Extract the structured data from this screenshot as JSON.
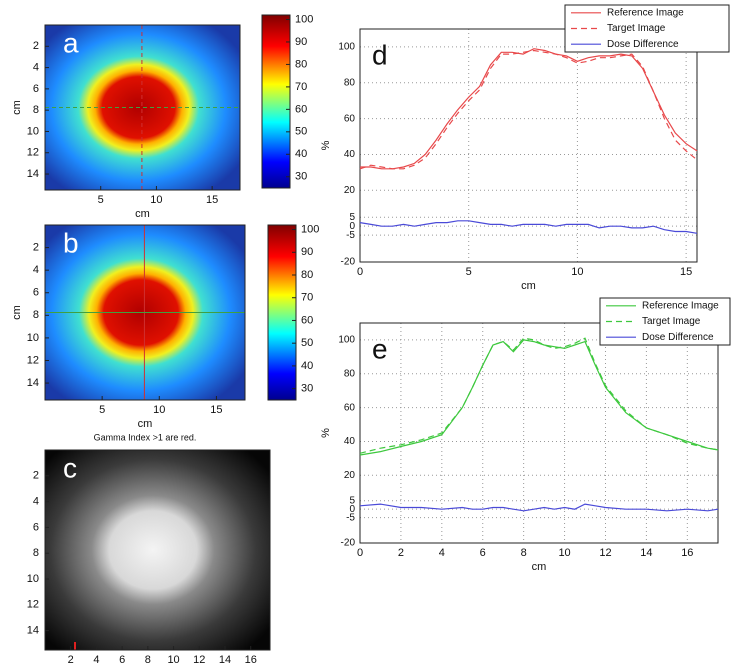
{
  "chart_data": [
    {
      "type": "heatmap",
      "panel": "a",
      "xlabel": "cm",
      "ylabel": "cm",
      "colormap": "jet",
      "xlim": [
        0,
        17.5
      ],
      "xticks": [
        5,
        10,
        15
      ],
      "ylim": [
        15.5,
        0
      ],
      "yticks": [
        2,
        4,
        6,
        8,
        10,
        12,
        14
      ],
      "colorbar_lim": [
        25,
        102
      ],
      "colorbar_ticks": [
        30,
        40,
        50,
        60,
        70,
        80,
        90,
        100
      ]
    },
    {
      "type": "heatmap",
      "panel": "b",
      "xlabel": "cm",
      "ylabel": "cm",
      "colormap": "jet",
      "note": "Gamma Index >1 are red.",
      "xlim": [
        0,
        17.5
      ],
      "xticks": [
        5,
        10,
        15
      ],
      "ylim": [
        15.5,
        0
      ],
      "yticks": [
        2,
        4,
        6,
        8,
        10,
        12,
        14
      ],
      "colorbar_lim": [
        25,
        102
      ],
      "colorbar_ticks": [
        30,
        40,
        50,
        60,
        70,
        80,
        90,
        100
      ]
    },
    {
      "type": "heatmap",
      "panel": "c",
      "colormap": "gray",
      "xlim": [
        0,
        17.5
      ],
      "xticks": [
        2,
        4,
        6,
        8,
        10,
        12,
        14,
        16
      ],
      "ylim": [
        15.5,
        0
      ],
      "yticks": [
        2,
        4,
        6,
        8,
        10,
        12,
        14
      ]
    },
    {
      "type": "line",
      "panel": "d",
      "xlabel": "cm",
      "ylabel": "%",
      "grid": true,
      "legend": "upper right",
      "xlim": [
        0,
        15.5
      ],
      "xticks": [
        0,
        5,
        10,
        15
      ],
      "ylim": [
        -20,
        110
      ],
      "yticks": [
        -20,
        -5,
        0,
        5,
        20,
        40,
        60,
        80,
        100
      ],
      "x": [
        0,
        0.5,
        1,
        1.5,
        2,
        2.5,
        3,
        3.5,
        4,
        4.5,
        5,
        5.5,
        6,
        6.5,
        7,
        7.5,
        8,
        8.5,
        9,
        9.5,
        10,
        10.5,
        11,
        11.5,
        12,
        12.5,
        13,
        13.5,
        14,
        14.5,
        15,
        15.5
      ],
      "series": [
        {
          "name": "Reference Image",
          "color": "#e8484a",
          "dash": "solid",
          "values": [
            33,
            33,
            32,
            32,
            33,
            35,
            40,
            48,
            57,
            65,
            72,
            78,
            90,
            97,
            97,
            96,
            99,
            98,
            96,
            95,
            92,
            94,
            95,
            95,
            96,
            95,
            88,
            75,
            62,
            52,
            46,
            42
          ]
        },
        {
          "name": "Target Image",
          "color": "#e8484a",
          "dash": "dashed",
          "values": [
            32,
            34,
            33,
            32,
            32,
            34,
            38,
            46,
            55,
            63,
            70,
            76,
            88,
            96,
            96,
            97,
            98,
            97,
            96,
            94,
            91,
            92,
            94,
            94,
            95,
            96,
            89,
            75,
            60,
            48,
            42,
            37
          ]
        },
        {
          "name": "Dose Difference",
          "color": "#4a4ad8",
          "dash": "solid",
          "values": [
            2,
            1,
            0,
            0,
            1,
            0,
            1,
            2,
            2,
            3,
            3,
            2,
            1,
            1,
            0,
            1,
            1,
            1,
            0,
            1,
            1,
            1,
            -1,
            0,
            0,
            -1,
            -1,
            0,
            -2,
            -3,
            -3,
            -4
          ]
        }
      ]
    },
    {
      "type": "line",
      "panel": "e",
      "xlabel": "cm",
      "ylabel": "%",
      "grid": true,
      "legend": "upper right",
      "xlim": [
        0,
        17.5
      ],
      "xticks": [
        0,
        2,
        4,
        6,
        8,
        10,
        12,
        14,
        16
      ],
      "ylim": [
        -20,
        110
      ],
      "yticks": [
        -20,
        -5,
        0,
        5,
        20,
        40,
        60,
        80,
        100
      ],
      "x": [
        0,
        1,
        2,
        3,
        4,
        5,
        5.5,
        6,
        6.5,
        7,
        7.5,
        8,
        8.5,
        9,
        9.5,
        10,
        10.5,
        11,
        11.5,
        12,
        13,
        14,
        15,
        16,
        17,
        17.5
      ],
      "series": [
        {
          "name": "Reference Image",
          "color": "#3ec83e",
          "dash": "solid",
          "values": [
            32,
            34,
            37,
            40,
            44,
            60,
            72,
            85,
            97,
            99,
            93,
            100,
            99,
            97,
            96,
            95,
            97,
            99,
            85,
            72,
            57,
            48,
            44,
            40,
            36,
            35
          ]
        },
        {
          "name": "Target Image",
          "color": "#3ec83e",
          "dash": "dashed",
          "values": [
            33,
            36,
            38,
            41,
            45,
            60,
            72,
            85,
            97,
            99,
            94,
            101,
            100,
            97,
            95,
            96,
            98,
            101,
            86,
            73,
            58,
            48,
            44,
            39,
            36,
            35
          ]
        },
        {
          "name": "Dose Difference",
          "color": "#4a4ad8",
          "dash": "solid",
          "values": [
            2,
            3,
            1,
            1,
            0,
            1,
            0,
            0,
            1,
            1,
            0,
            -1,
            0,
            1,
            0,
            1,
            0,
            3,
            2,
            1,
            0,
            0,
            -1,
            0,
            -1,
            0
          ]
        }
      ]
    }
  ]
}
